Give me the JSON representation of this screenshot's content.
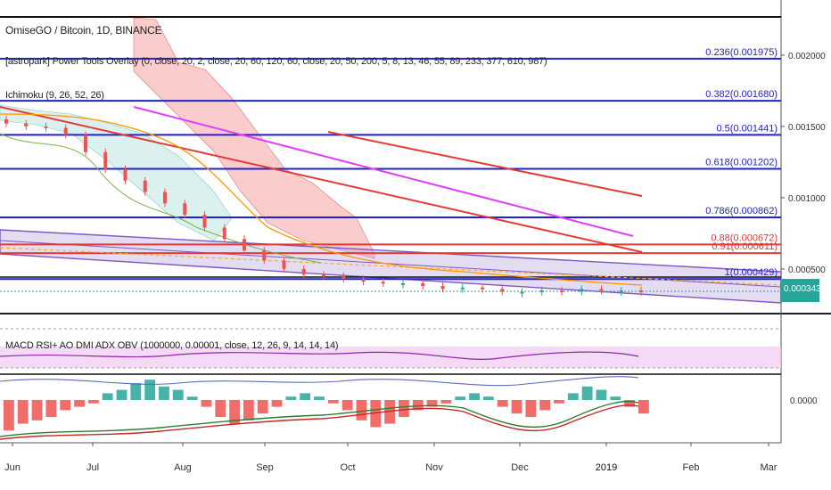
{
  "header": {
    "symbol_title": "OmiseGO / Bitcoin, 1D, BINANCE",
    "indicator_1": "[astropark] Power Tools Overlay (0, close, 20, 2, close, 20, 60, 120, 60, close, 20, 50, 200, 5, 8, 13, 46, 55, 89, 233, 377, 610, 987)",
    "indicator_2": "Ichimoku (9, 26, 52, 26)",
    "indicator_3": "MACD RSI+ AO DMI ADX OBV (1000000, 0.00001, close, 12, 26, 9, 14, 14, 14)"
  },
  "price_badge": {
    "label": "0.000343",
    "color": "#26a69a"
  },
  "colors": {
    "fib": "#2222cc",
    "trend_red": "#e53935",
    "trend_magenta": "#e040fb",
    "channel": "#7e57c2",
    "candle_up": "#26a69a",
    "candle_down": "#ef5350",
    "cloud_red": "#f8bbbb",
    "cloud_green": "#b2dfdb"
  },
  "chart_data": [
    {
      "type": "line",
      "title": "OmiseGO / Bitcoin, 1D, BINANCE",
      "x_tick_labels": [
        "Jun",
        "Jul",
        "Aug",
        "Sep",
        "Oct",
        "Nov",
        "Dec",
        "2019",
        "Feb",
        "Mar"
      ],
      "y_tick_labels": [
        "0.002000",
        "0.001500",
        "0.001000",
        "0.000500"
      ],
      "last_price": 0.000343,
      "fib_levels": [
        {
          "label": "0.236(0.001975)",
          "value": 0.001975
        },
        {
          "label": "0.382(0.001680)",
          "value": 0.00168
        },
        {
          "label": "0.5(0.001441)",
          "value": 0.001441
        },
        {
          "label": "0.618(0.001202)",
          "value": 0.001202
        },
        {
          "label": "0.786(0.000862)",
          "value": 0.000862
        },
        {
          "label": "0.88(0.000672)",
          "value": 0.000672
        },
        {
          "label": "0.91(0.000611)",
          "value": 0.000611
        },
        {
          "label": "1(0.000429)",
          "value": 0.000429
        }
      ],
      "series": [
        {
          "values": [
            0.00152,
            0.0015,
            0.00149,
            0.00144,
            0.00132,
            0.0012,
            0.00112,
            0.00104,
            0.00096,
            0.00088,
            0.00079,
            0.00071,
            0.00063,
            0.00056,
            0.0005,
            0.00046,
            0.00045,
            0.00043,
            0.00041,
            0.0004,
            0.0004,
            0.00038,
            0.00036,
            0.00037,
            0.00036,
            0.00034,
            0.00034,
            0.00035,
            0.00034,
            0.00036,
            0.00035,
            0.00035,
            0.00034
          ]
        }
      ]
    },
    {
      "type": "bar",
      "title": "MACD RSI+ AO DMI ADX OBV (1000000, 0.00001, close, 12, 26, 9, 14, 14, 14)",
      "y_tick_labels": [
        "0.0000"
      ],
      "series": [
        {
          "values": [
            -0.9,
            -0.7,
            -0.6,
            -0.5,
            -0.3,
            -0.2,
            -0.1,
            0.2,
            0.3,
            0.5,
            0.6,
            0.4,
            0.3,
            0.1,
            -0.2,
            -0.5,
            -0.7,
            -0.6,
            -0.4,
            -0.2,
            0.1,
            0.2,
            0.1,
            -0.1,
            -0.3,
            -0.6,
            -0.8,
            -0.7,
            -0.5,
            -0.3,
            -0.2,
            -0.1,
            0.1,
            0.2,
            0.1,
            -0.2,
            -0.4,
            -0.5,
            -0.3,
            -0.1,
            0.2,
            0.4,
            0.3,
            0.1,
            -0.2,
            -0.4
          ]
        }
      ]
    }
  ]
}
